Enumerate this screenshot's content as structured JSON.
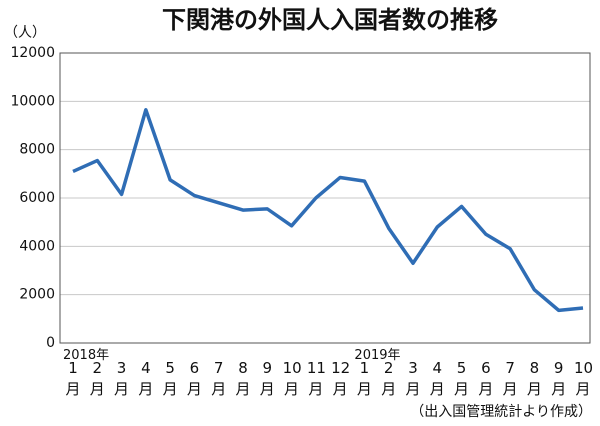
{
  "chart_data": {
    "type": "line",
    "title": "下関港の外国人入国者数の推移",
    "y_unit": "（人）",
    "source": "（出入国管理統計より作成）",
    "year_labels": [
      "2018年",
      "2019年"
    ],
    "categories": [
      "1月",
      "2月",
      "3月",
      "4月",
      "5月",
      "6月",
      "7月",
      "8月",
      "9月",
      "10月",
      "11月",
      "12月",
      "1月",
      "2月",
      "3月",
      "4月",
      "5月",
      "6月",
      "7月",
      "8月",
      "9月",
      "10月"
    ],
    "series": [
      {
        "name": "外国人入国者数",
        "color": "#2f6db5",
        "values": [
          7100,
          7550,
          6150,
          9650,
          6750,
          6100,
          5800,
          5500,
          5550,
          4850,
          6000,
          6850,
          6700,
          4750,
          3300,
          4800,
          5650,
          4500,
          3900,
          2200,
          1350,
          1450
        ]
      }
    ],
    "ylim": [
      0,
      12000
    ],
    "yticks": [
      0,
      2000,
      4000,
      6000,
      8000,
      10000,
      12000
    ],
    "grid": true
  }
}
